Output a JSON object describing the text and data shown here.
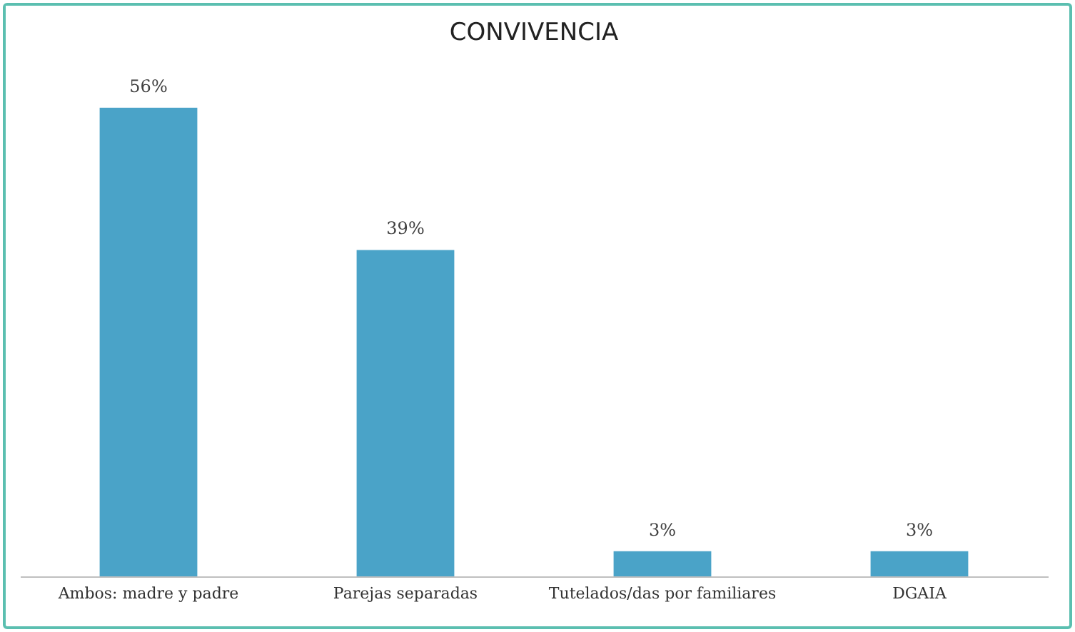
{
  "chart_data": {
    "type": "bar",
    "title": "CONVIVENCIA",
    "categories": [
      "Ambos: madre y padre",
      "Parejas separadas",
      "Tutelados/das por familiares",
      "DGAIA"
    ],
    "values": [
      56,
      39,
      3,
      3
    ],
    "value_labels": [
      "56%",
      "39%",
      "3%",
      "3%"
    ],
    "color": "#4aa3c8",
    "grid": false
  }
}
